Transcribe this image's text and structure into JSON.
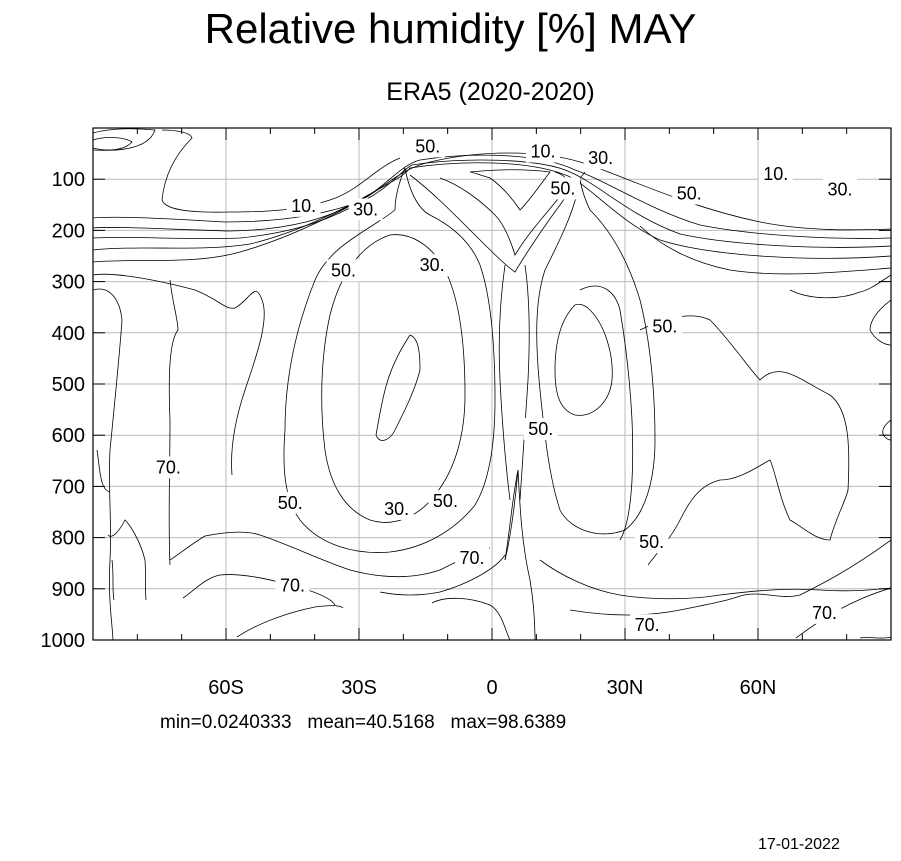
{
  "chart_data": {
    "type": "contour",
    "title": "Relative humidity [%] MAY",
    "subtitle": "ERA5 (2020-2020)",
    "xlabel": "",
    "ylabel": "",
    "x_ticks": [
      "60S",
      "30S",
      "0",
      "30N",
      "60N"
    ],
    "x_tick_values": [
      -60,
      -30,
      0,
      30,
      60
    ],
    "y_ticks": [
      "100",
      "200",
      "300",
      "400",
      "500",
      "600",
      "700",
      "800",
      "900",
      "1000"
    ],
    "y_tick_values": [
      100,
      200,
      300,
      400,
      500,
      600,
      700,
      800,
      900,
      1000
    ],
    "xlim": [
      -90,
      90
    ],
    "ylim": [
      1000,
      0
    ],
    "grid": true,
    "contour_levels": [
      10,
      30,
      50,
      70
    ],
    "contour_labels": [
      {
        "text": "10.",
        "x": 11.5,
        "y": 46
      },
      {
        "text": "10.",
        "x": -42.5,
        "y": 152
      },
      {
        "text": "10.",
        "x": 64,
        "y": 90
      },
      {
        "text": "30.",
        "x": 24.5,
        "y": 59
      },
      {
        "text": "30.",
        "x": -28.5,
        "y": 159
      },
      {
        "text": "30.",
        "x": -13.5,
        "y": 268
      },
      {
        "text": "30.",
        "x": 78.5,
        "y": 120
      },
      {
        "text": "30.",
        "x": -21.5,
        "y": 744
      },
      {
        "text": "50.",
        "x": -14.5,
        "y": 36
      },
      {
        "text": "50.",
        "x": 16,
        "y": 118
      },
      {
        "text": "50.",
        "x": 44.5,
        "y": 128
      },
      {
        "text": "50.",
        "x": -33.5,
        "y": 278
      },
      {
        "text": "50.",
        "x": 39,
        "y": 388
      },
      {
        "text": "50.",
        "x": 11,
        "y": 588
      },
      {
        "text": "50.",
        "x": -10.5,
        "y": 729
      },
      {
        "text": "50.",
        "x": -45.5,
        "y": 732
      },
      {
        "text": "50.",
        "x": 36,
        "y": 809
      },
      {
        "text": "70.",
        "x": -73,
        "y": 663
      },
      {
        "text": "70.",
        "x": -4.5,
        "y": 840
      },
      {
        "text": "70.",
        "x": -45,
        "y": 894
      },
      {
        "text": "70.",
        "x": 35,
        "y": 971
      },
      {
        "text": "70.",
        "x": 75,
        "y": 947
      }
    ],
    "stats": {
      "min": "0.0240333",
      "mean": "40.5168",
      "max": "98.6389"
    }
  },
  "stats_line": "min=0.0240333   mean=40.5168   max=98.6389",
  "date": "17-01-2022"
}
